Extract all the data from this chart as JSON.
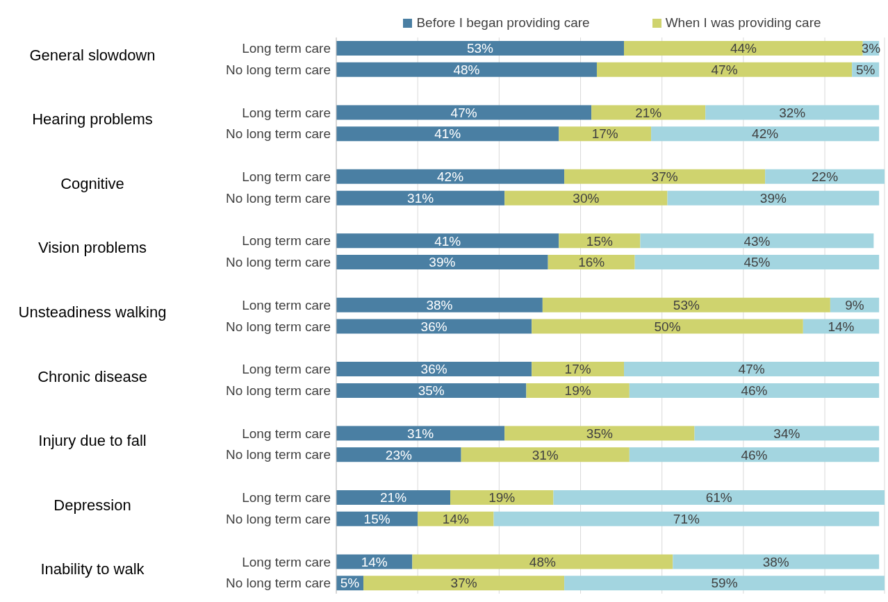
{
  "chart_data": {
    "type": "bar",
    "orientation": "horizontal",
    "stacked": true,
    "categories": [
      "Long term care",
      "No long term care",
      null,
      "Long term care",
      "No long term care",
      null,
      "Long term care",
      "No long term care",
      null,
      "Long term care",
      "No long term care",
      null,
      "Long term care",
      "No long term care",
      null,
      "Long term care",
      "No long term care",
      null,
      "Long term care",
      "No long term care",
      null,
      "Long term care",
      "No long term care",
      null,
      "Long term care",
      "No long term care"
    ],
    "annotations": [
      "General slowdown",
      "Hearing problems",
      "Cognitive",
      "Vision problems",
      "Unsteadiness walking",
      "Chronic disease",
      "Injury due to fall",
      "Depression",
      "Inability to walk"
    ],
    "series": [
      {
        "name": "Before I began providing care",
        "color": "#4a7fa3",
        "values": [
          53,
          48,
          null,
          47,
          41,
          null,
          42,
          31,
          null,
          41,
          39,
          null,
          38,
          36,
          null,
          36,
          35,
          null,
          31,
          23,
          null,
          21,
          15,
          null,
          14,
          5
        ],
        "value_labels": [
          "53%",
          "48%",
          null,
          "47%",
          "41%",
          null,
          "42%",
          "31%",
          null,
          "41%",
          "39%",
          null,
          "38%",
          "36%",
          null,
          "36%",
          "35%",
          null,
          "31%",
          "23%",
          null,
          "21%",
          "15%",
          null,
          "14%",
          "5%"
        ]
      },
      {
        "name": "When I was providing care",
        "color": "#cfd36e",
        "values": [
          44,
          47,
          null,
          21,
          17,
          null,
          37,
          30,
          null,
          15,
          16,
          null,
          53,
          50,
          null,
          17,
          19,
          null,
          35,
          31,
          null,
          19,
          14,
          null,
          48,
          37
        ],
        "value_labels": [
          "44%",
          "47%",
          null,
          "21%",
          "17%",
          null,
          "37%",
          "30%",
          null,
          "15%",
          "16%",
          null,
          "53%",
          "50%",
          null,
          "17%",
          "19%",
          null,
          "35%",
          "31%",
          null,
          "19%",
          "14%",
          null,
          "48%",
          "37%"
        ]
      },
      {
        "color": "#a3d5e0",
        "values": [
          3,
          5,
          null,
          32,
          42,
          null,
          22,
          39,
          null,
          43,
          45,
          null,
          9,
          14,
          null,
          47,
          46,
          null,
          34,
          46,
          null,
          61,
          71,
          null,
          38,
          59
        ],
        "value_labels": [
          "3%",
          "5%",
          null,
          "32%",
          "42%",
          null,
          "22%",
          "39%",
          null,
          "43%",
          "45%",
          null,
          "9%",
          "14%",
          null,
          "47%",
          "46%",
          null,
          "34%",
          "46%",
          null,
          "61%",
          "71%",
          null,
          "38%",
          "59%"
        ]
      }
    ],
    "tick_labels": "y",
    "grid": "x",
    "legend": "top"
  }
}
